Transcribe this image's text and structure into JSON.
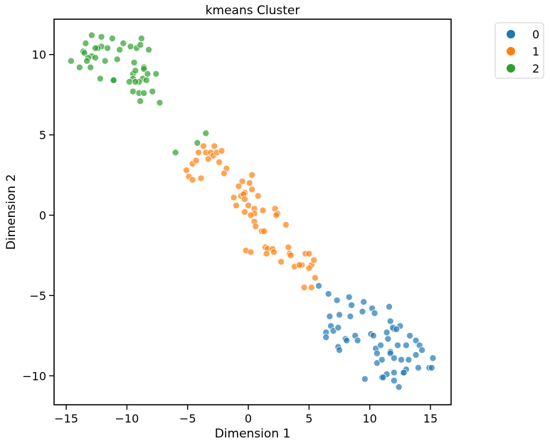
{
  "chart_data": {
    "type": "scatter",
    "title": "kmeans Cluster",
    "xlabel": "Dimension 1",
    "ylabel": "Dimension 2",
    "xlim": [
      -16,
      16.7
    ],
    "ylim": [
      -11.8,
      12.2
    ],
    "xticks": [
      -15,
      -10,
      -5,
      0,
      5,
      10,
      15
    ],
    "yticks": [
      -10,
      -5,
      0,
      5,
      10
    ],
    "xtick_labels": [
      "−15",
      "−10",
      "−5",
      "0",
      "5",
      "10",
      "15"
    ],
    "ytick_labels": [
      "−10",
      "−5",
      "0",
      "5",
      "10"
    ],
    "grid": false,
    "legend_position": "outside top-right",
    "series": [
      {
        "name": "0",
        "color": "#1f77b4",
        "points": [
          [
            5.8,
            -4.4
          ],
          [
            6.6,
            -4.9
          ],
          [
            7.3,
            -5.3
          ],
          [
            8.3,
            -5.1
          ],
          [
            8.5,
            -5.6
          ],
          [
            9.5,
            -5.4
          ],
          [
            10.2,
            -5.8
          ],
          [
            11.6,
            -5.7
          ],
          [
            6.7,
            -6.3
          ],
          [
            7.5,
            -6.2
          ],
          [
            8.4,
            -6.3
          ],
          [
            9.4,
            -6.0
          ],
          [
            10.4,
            -6.1
          ],
          [
            11.7,
            -6.6
          ],
          [
            12.0,
            -7.1
          ],
          [
            12.5,
            -6.9
          ],
          [
            6.4,
            -7.3
          ],
          [
            6.8,
            -6.9
          ],
          [
            7.0,
            -7.2
          ],
          [
            7.4,
            -7.0
          ],
          [
            8.0,
            -7.7
          ],
          [
            8.8,
            -7.5
          ],
          [
            9.0,
            -7.8
          ],
          [
            10.1,
            -7.4
          ],
          [
            10.3,
            -7.5
          ],
          [
            11.4,
            -7.3
          ],
          [
            11.9,
            -7.0
          ],
          [
            12.2,
            -7.1
          ],
          [
            13.3,
            -7.5
          ],
          [
            6.4,
            -7.6
          ],
          [
            7.4,
            -8.2
          ],
          [
            7.5,
            -8.4
          ],
          [
            8.1,
            -7.8
          ],
          [
            10.5,
            -8.3
          ],
          [
            10.6,
            -8.6
          ],
          [
            10.9,
            -8.1
          ],
          [
            11.5,
            -7.7
          ],
          [
            11.7,
            -8.5
          ],
          [
            12.3,
            -8.1
          ],
          [
            13.0,
            -8.1
          ],
          [
            13.8,
            -7.8
          ],
          [
            14.1,
            -8.1
          ],
          [
            14.3,
            -8.4
          ],
          [
            10.6,
            -9.2
          ],
          [
            11.0,
            -9.0
          ],
          [
            11.7,
            -8.6
          ],
          [
            12.0,
            -8.9
          ],
          [
            12.6,
            -9.0
          ],
          [
            13.2,
            -9.0
          ],
          [
            13.8,
            -8.7
          ],
          [
            15.2,
            -8.9
          ],
          [
            12.8,
            -9.8
          ],
          [
            13.0,
            -9.6
          ],
          [
            14.0,
            -9.5
          ],
          [
            14.9,
            -9.5
          ],
          [
            15.1,
            -9.5
          ],
          [
            11.4,
            -9.9
          ],
          [
            12.0,
            -9.8
          ],
          [
            12.8,
            -9.8
          ],
          [
            11.0,
            -10.1
          ],
          [
            11.1,
            -10.1
          ],
          [
            12.0,
            -10.3
          ],
          [
            9.6,
            -10.2
          ],
          [
            12.4,
            -10.7
          ]
        ]
      },
      {
        "name": "1",
        "color": "#ff7f0e",
        "points": [
          [
            -4.1,
            3.9
          ],
          [
            -3.7,
            4.3
          ],
          [
            -3.5,
            3.9
          ],
          [
            -3.1,
            3.9
          ],
          [
            -2.9,
            3.7
          ],
          [
            -2.6,
            3.9
          ],
          [
            -2.8,
            4.3
          ],
          [
            -2.2,
            4.0
          ],
          [
            -2.4,
            3.3
          ],
          [
            -3.3,
            3.5
          ],
          [
            -4.6,
            3.2
          ],
          [
            -4.3,
            3.4
          ],
          [
            -3.9,
            2.3
          ],
          [
            -1.8,
            2.9
          ],
          [
            -2.0,
            2.6
          ],
          [
            -5.1,
            2.8
          ],
          [
            -4.9,
            2.4
          ],
          [
            -4.6,
            2.2
          ],
          [
            0.3,
            2.5
          ],
          [
            -0.5,
            2.1
          ],
          [
            -0.8,
            1.8
          ],
          [
            0.3,
            1.6
          ],
          [
            0.1,
            2.0
          ],
          [
            -0.3,
            1.4
          ],
          [
            -0.6,
            1.2
          ],
          [
            -0.4,
            1.3
          ],
          [
            -1.2,
            1.1
          ],
          [
            -0.3,
            1.0
          ],
          [
            0.8,
            1.2
          ],
          [
            -1.0,
            0.6
          ],
          [
            0.0,
            0.6
          ],
          [
            0.5,
            0.4
          ],
          [
            1.2,
            0.3
          ],
          [
            0.5,
            0.1
          ],
          [
            0.2,
            0.0
          ],
          [
            -0.3,
            0.2
          ],
          [
            2.2,
            0.4
          ],
          [
            2.4,
            0.1
          ],
          [
            2.3,
            0.0
          ],
          [
            0.5,
            -0.4
          ],
          [
            0.6,
            -0.7
          ],
          [
            1.1,
            -1.0
          ],
          [
            1.3,
            -1.0
          ],
          [
            3.1,
            -0.6
          ],
          [
            -0.2,
            -2.2
          ],
          [
            0.2,
            -2.3
          ],
          [
            1.4,
            -2.0
          ],
          [
            1.6,
            -2.1
          ],
          [
            1.5,
            -2.4
          ],
          [
            2.0,
            -2.1
          ],
          [
            2.1,
            -2.3
          ],
          [
            3.3,
            -2.0
          ],
          [
            3.4,
            -2.4
          ],
          [
            3.5,
            -2.5
          ],
          [
            4.7,
            -2.4
          ],
          [
            5.0,
            -2.4
          ],
          [
            2.7,
            -2.9
          ],
          [
            3.8,
            -3.2
          ],
          [
            4.4,
            -3.1
          ],
          [
            4.2,
            -3.1
          ],
          [
            5.2,
            -3.1
          ],
          [
            5.4,
            -2.8
          ],
          [
            5.0,
            -3.3
          ],
          [
            5.5,
            -3.9
          ],
          [
            4.6,
            -4.5
          ],
          [
            5.2,
            -4.5
          ]
        ]
      },
      {
        "name": "2",
        "color": "#2ca02c",
        "points": [
          [
            -12.9,
            11.2
          ],
          [
            -12.1,
            11.1
          ],
          [
            -11.2,
            11.0
          ],
          [
            -8.8,
            11.0
          ],
          [
            -13.4,
            10.7
          ],
          [
            -10.3,
            10.7
          ],
          [
            -9.7,
            10.5
          ],
          [
            -9.2,
            10.4
          ],
          [
            -12.1,
            10.5
          ],
          [
            -12.4,
            10.4
          ],
          [
            -12.6,
            10.4
          ],
          [
            -11.6,
            10.4
          ],
          [
            -8.9,
            10.6
          ],
          [
            -8.2,
            10.3
          ],
          [
            -13.6,
            10.2
          ],
          [
            -13.5,
            10.1
          ],
          [
            -12.9,
            9.9
          ],
          [
            -12.6,
            9.8
          ],
          [
            -11.8,
            9.6
          ],
          [
            -10.8,
            9.7
          ],
          [
            -10.6,
            10.3
          ],
          [
            -13.2,
            9.8
          ],
          [
            -13.3,
            9.6
          ],
          [
            -14.6,
            9.6
          ],
          [
            -13.9,
            9.2
          ],
          [
            -13.0,
            9.2
          ],
          [
            -9.4,
            9.5
          ],
          [
            -8.6,
            9.2
          ],
          [
            -8.6,
            9.1
          ],
          [
            -9.5,
            8.8
          ],
          [
            -8.3,
            8.8
          ],
          [
            -9.3,
            9.0
          ],
          [
            -8.7,
            8.5
          ],
          [
            -9.5,
            8.5
          ],
          [
            -9.0,
            8.3
          ],
          [
            -8.4,
            8.4
          ],
          [
            -7.6,
            8.8
          ],
          [
            -9.8,
            8.3
          ],
          [
            -9.3,
            8.3
          ],
          [
            -12.2,
            8.5
          ],
          [
            -11.1,
            8.4
          ],
          [
            -11.1,
            8.4
          ],
          [
            -9.5,
            7.7
          ],
          [
            -9.0,
            7.6
          ],
          [
            -8.6,
            7.6
          ],
          [
            -7.9,
            7.7
          ],
          [
            -8.9,
            7.1
          ],
          [
            -7.3,
            7.0
          ],
          [
            -3.5,
            5.1
          ],
          [
            -4.2,
            4.5
          ],
          [
            -6.0,
            3.9
          ]
        ]
      }
    ]
  }
}
